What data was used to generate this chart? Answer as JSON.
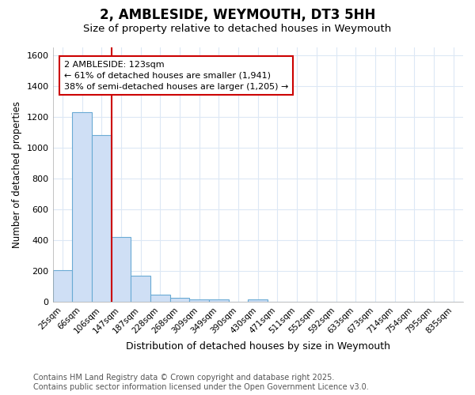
{
  "title": "2, AMBLESIDE, WEYMOUTH, DT3 5HH",
  "subtitle": "Size of property relative to detached houses in Weymouth",
  "xlabel": "Distribution of detached houses by size in Weymouth",
  "ylabel": "Number of detached properties",
  "categories": [
    "25sqm",
    "66sqm",
    "106sqm",
    "147sqm",
    "187sqm",
    "228sqm",
    "268sqm",
    "309sqm",
    "349sqm",
    "390sqm",
    "430sqm",
    "471sqm",
    "511sqm",
    "552sqm",
    "592sqm",
    "633sqm",
    "673sqm",
    "714sqm",
    "754sqm",
    "795sqm",
    "835sqm"
  ],
  "bar_heights": [
    205,
    1230,
    1080,
    420,
    170,
    48,
    25,
    15,
    15,
    0,
    15,
    0,
    0,
    0,
    0,
    0,
    0,
    0,
    0,
    0,
    0
  ],
  "bar_color": "#cfdff5",
  "bar_edge_color": "#6aaad4",
  "bar_edge_width": 0.8,
  "ylim": [
    0,
    1650
  ],
  "yticks": [
    0,
    200,
    400,
    600,
    800,
    1000,
    1200,
    1400,
    1600
  ],
  "red_line_color": "#cc0000",
  "annotation_text": "2 AMBLESIDE: 123sqm\n← 61% of detached houses are smaller (1,941)\n38% of semi-detached houses are larger (1,205) →",
  "annotation_box_color": "#cc0000",
  "footnote_line1": "Contains HM Land Registry data © Crown copyright and database right 2025.",
  "footnote_line2": "Contains public sector information licensed under the Open Government Licence v3.0.",
  "bg_color": "#ffffff",
  "grid_color": "#dce8f5",
  "title_fontsize": 12,
  "subtitle_fontsize": 9.5,
  "xlabel_fontsize": 9,
  "ylabel_fontsize": 8.5,
  "annotation_fontsize": 8,
  "footnote_fontsize": 7
}
